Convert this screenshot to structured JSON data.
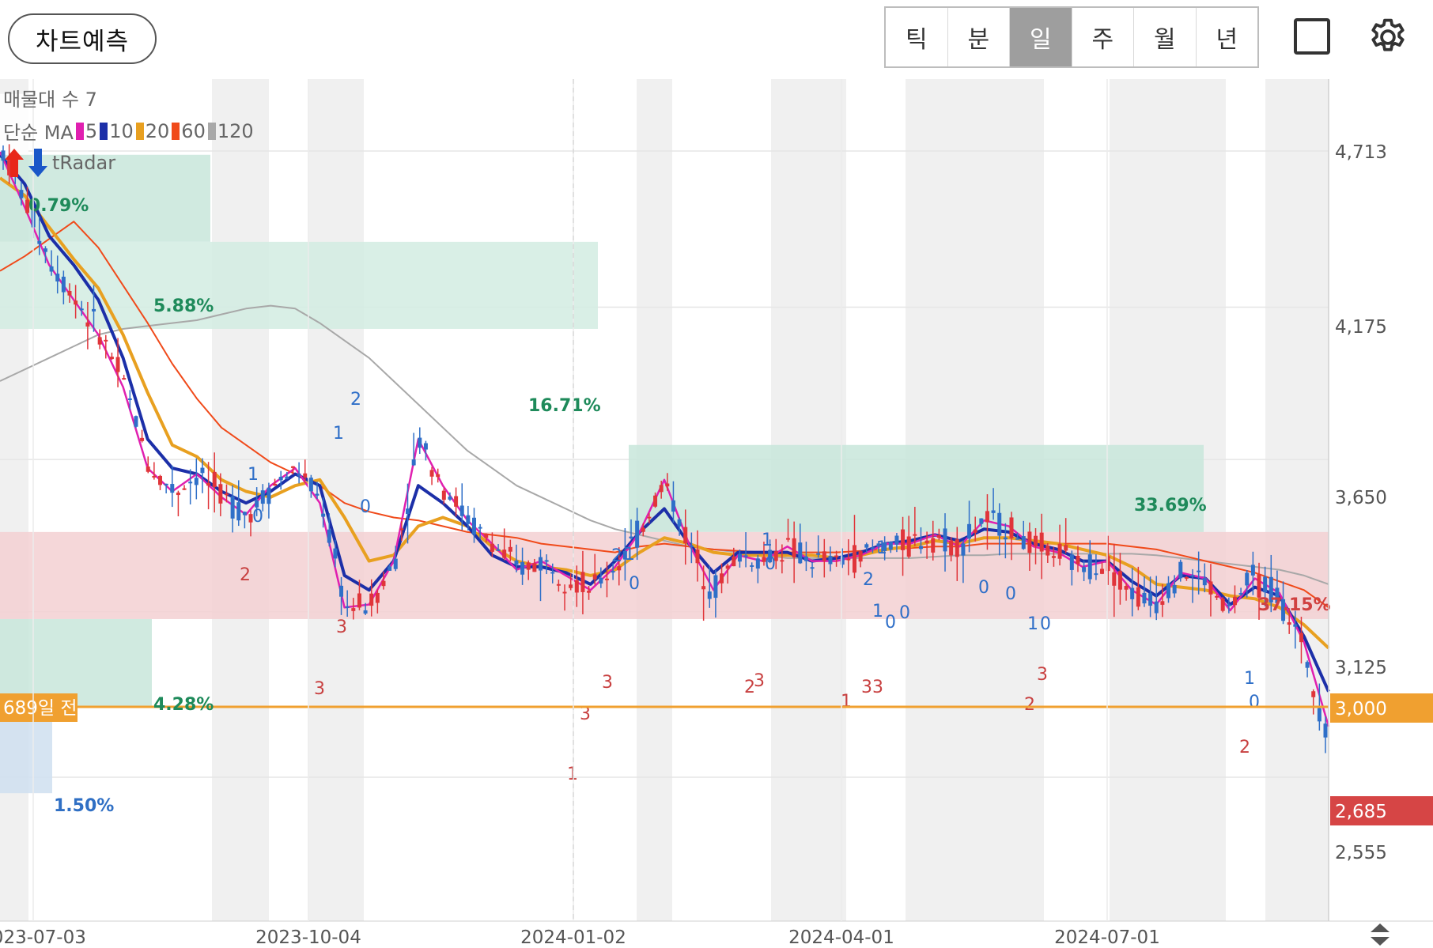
{
  "header": {
    "predict_label": "차트예측",
    "periods": [
      "틱",
      "분",
      "일",
      "주",
      "월",
      "년"
    ],
    "active_period": "일"
  },
  "overlay": {
    "volume_profile_label": "매물대 수 7",
    "ma_label": "단순 MA",
    "ma_periods": [
      {
        "period": "5",
        "color": "#e020b0"
      },
      {
        "period": "10",
        "color": "#1c2fa8"
      },
      {
        "period": "20",
        "color": "#e8a020"
      },
      {
        "period": "60",
        "color": "#f04a1a"
      },
      {
        "period": "120",
        "color": "#a8a8a8"
      }
    ],
    "tradar_label": "tRadar"
  },
  "chart_data": {
    "type": "candlestick",
    "x_ticks": [
      "2023-07-03",
      "2023-10-04",
      "2024-01-02",
      "2024-04-01",
      "2024-07-01"
    ],
    "y_ticks": [
      4713,
      4175,
      3650,
      3125,
      2555
    ],
    "ylim": [
      2340,
      4910
    ],
    "current_price": 2685,
    "reference_line": {
      "value": 3000,
      "label": "689일 전",
      "color": "#f0a030"
    },
    "volume_profile": [
      {
        "low": 4400,
        "high": 4700,
        "pct": "5.88%",
        "color": "#c8e6da"
      },
      {
        "low": 4100,
        "high": 4400,
        "pct": "16.71%",
        "color": "#d2ece2"
      },
      {
        "low": 3400,
        "high": 3700,
        "pct": "33.69%",
        "color": "#c8e6da"
      },
      {
        "low": 3100,
        "high": 3400,
        "pct": "37.15%",
        "color": "#f3d0d2"
      },
      {
        "low": 2800,
        "high": 3100,
        "pct": "4.28%",
        "color": "#c8e6da"
      },
      {
        "low": 2500,
        "high": 2800,
        "pct": "1.50%",
        "color": "#cfdff0"
      },
      {
        "low": 4700,
        "high": 4910,
        "pct": "0.79%",
        "color": "#ffffff"
      }
    ],
    "ma5": [
      4710,
      4520,
      4320,
      4200,
      4080,
      3900,
      3620,
      3540,
      3600,
      3520,
      3460,
      3560,
      3620,
      3500,
      3140,
      3150,
      3300,
      3720,
      3560,
      3440,
      3360,
      3270,
      3300,
      3250,
      3200,
      3280,
      3400,
      3580,
      3360,
      3200,
      3320,
      3300,
      3350,
      3300,
      3300,
      3320,
      3360,
      3360,
      3390,
      3350,
      3440,
      3420,
      3350,
      3330,
      3280,
      3300,
      3200,
      3150,
      3260,
      3240,
      3130,
      3240,
      3190,
      3020,
      2730
    ],
    "ma10": [
      4700,
      4600,
      4420,
      4320,
      4200,
      4000,
      3720,
      3620,
      3600,
      3540,
      3500,
      3540,
      3600,
      3560,
      3250,
      3200,
      3300,
      3560,
      3500,
      3420,
      3320,
      3280,
      3280,
      3260,
      3220,
      3300,
      3400,
      3480,
      3360,
      3260,
      3330,
      3330,
      3330,
      3300,
      3310,
      3330,
      3360,
      3370,
      3390,
      3370,
      3410,
      3400,
      3360,
      3340,
      3300,
      3300,
      3230,
      3180,
      3250,
      3240,
      3150,
      3210,
      3180,
      3040,
      2850
    ],
    "ma20": [
      4620,
      4560,
      4450,
      4340,
      4240,
      4080,
      3880,
      3700,
      3660,
      3580,
      3540,
      3520,
      3560,
      3580,
      3450,
      3300,
      3320,
      3420,
      3450,
      3420,
      3350,
      3300,
      3280,
      3270,
      3250,
      3270,
      3330,
      3380,
      3360,
      3330,
      3320,
      3320,
      3320,
      3320,
      3310,
      3320,
      3340,
      3350,
      3370,
      3360,
      3380,
      3380,
      3370,
      3360,
      3340,
      3320,
      3280,
      3220,
      3210,
      3200,
      3180,
      3170,
      3140,
      3080,
      3000
    ],
    "ma60": [
      4300,
      4350,
      4410,
      4470,
      4380,
      4250,
      4120,
      3980,
      3860,
      3760,
      3700,
      3640,
      3600,
      3560,
      3500,
      3470,
      3450,
      3440,
      3420,
      3400,
      3390,
      3380,
      3360,
      3350,
      3340,
      3330,
      3350,
      3360,
      3350,
      3340,
      3335,
      3330,
      3330,
      3330,
      3330,
      3335,
      3340,
      3345,
      3350,
      3350,
      3360,
      3360,
      3360,
      3360,
      3360,
      3360,
      3350,
      3340,
      3320,
      3300,
      3280,
      3260,
      3230,
      3200,
      3140
    ],
    "ma120": [
      3920,
      3960,
      4000,
      4040,
      4080,
      4100,
      4110,
      4120,
      4130,
      4150,
      4170,
      4180,
      4170,
      4120,
      4060,
      4000,
      3920,
      3840,
      3760,
      3680,
      3620,
      3560,
      3520,
      3480,
      3440,
      3410,
      3390,
      3370,
      3350,
      3340,
      3330,
      3320,
      3310,
      3310,
      3310,
      3310,
      3310,
      3310,
      3315,
      3320,
      3320,
      3325,
      3325,
      3325,
      3325,
      3325,
      3325,
      3320,
      3310,
      3300,
      3290,
      3280,
      3270,
      3250,
      3220
    ]
  },
  "labels": {
    "pct_079": "0.79%",
    "pct_588": "5.88%",
    "pct_1671": "16.71%",
    "pct_3369": "33.69%",
    "pct_3715": "37.15%",
    "pct_428": "4.28%",
    "pct_150": "1.50%",
    "ref_label": "689일 전",
    "ref_value": "3,000",
    "current_value": "2,685",
    "y4713": "4,713",
    "y4175": "4,175",
    "y3650": "3,650",
    "y3125": "3,125",
    "y2555": "2,555"
  }
}
